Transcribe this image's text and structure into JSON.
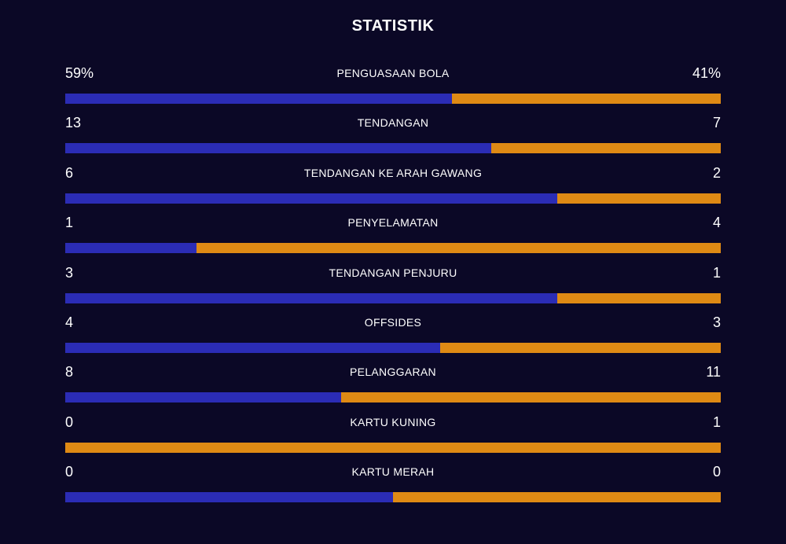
{
  "title": "STATISTIK",
  "colors": {
    "background": "#0b0826",
    "home_bar": "#2b2cb5",
    "away_bar": "#df8a14",
    "text": "#ffffff"
  },
  "stats": [
    {
      "label": "PENGUASAAN BOLA",
      "home": "59%",
      "away": "41%",
      "home_share": 0.59
    },
    {
      "label": "TENDANGAN",
      "home": "13",
      "away": "7",
      "home_share": 0.65
    },
    {
      "label": "TENDANGAN KE ARAH GAWANG",
      "home": "6",
      "away": "2",
      "home_share": 0.75
    },
    {
      "label": "PENYELAMATAN",
      "home": "1",
      "away": "4",
      "home_share": 0.2
    },
    {
      "label": "TENDANGAN PENJURU",
      "home": "3",
      "away": "1",
      "home_share": 0.75
    },
    {
      "label": "OFFSIDES",
      "home": "4",
      "away": "3",
      "home_share": 0.5714
    },
    {
      "label": "PELANGGARAN",
      "home": "8",
      "away": "11",
      "home_share": 0.4211
    },
    {
      "label": "KARTU KUNING",
      "home": "0",
      "away": "1",
      "home_share": 0
    },
    {
      "label": "KARTU MERAH",
      "home": "0",
      "away": "0",
      "home_share": 0.5
    }
  ]
}
